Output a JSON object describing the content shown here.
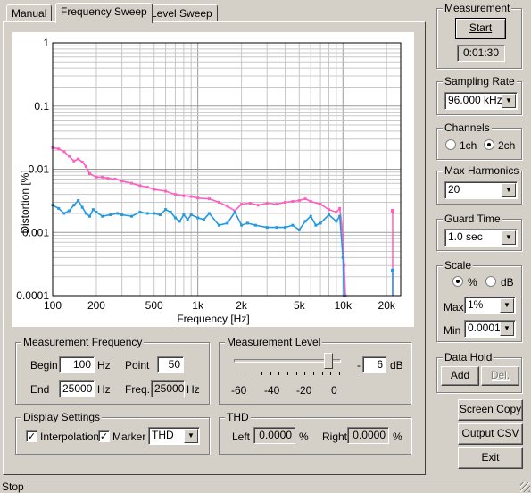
{
  "tabs": [
    {
      "label": "Manual",
      "active": false
    },
    {
      "label": "Frequency Sweep",
      "active": true
    },
    {
      "label": "Level Sweep",
      "active": false
    }
  ],
  "chart_data": {
    "type": "line",
    "xlabel": "Frequency [Hz]",
    "ylabel": "Distortion [%]",
    "xscale": "log",
    "yscale": "log",
    "xlim": [
      100,
      25000
    ],
    "ylim": [
      0.0001,
      1
    ],
    "x_ticks": [
      "100",
      "200",
      "500",
      "1k",
      "2k",
      "5k",
      "10k",
      "20k"
    ],
    "y_ticks": [
      "1",
      "0.1",
      "0.01",
      "0.001",
      "0.0001"
    ],
    "grid": true,
    "series": [
      {
        "color": "#ff5fbf",
        "points": [
          [
            100,
            0.022
          ],
          [
            110,
            0.021
          ],
          [
            120,
            0.019
          ],
          [
            130,
            0.016
          ],
          [
            140,
            0.0135
          ],
          [
            150,
            0.0145
          ],
          [
            160,
            0.013
          ],
          [
            170,
            0.011
          ],
          [
            180,
            0.0085
          ],
          [
            200,
            0.0075
          ],
          [
            220,
            0.0075
          ],
          [
            240,
            0.0072
          ],
          [
            270,
            0.007
          ],
          [
            300,
            0.0065
          ],
          [
            350,
            0.006
          ],
          [
            400,
            0.0055
          ],
          [
            450,
            0.0052
          ],
          [
            500,
            0.0048
          ],
          [
            600,
            0.0045
          ],
          [
            700,
            0.004
          ],
          [
            800,
            0.0038
          ],
          [
            900,
            0.0037
          ],
          [
            1000,
            0.0035
          ],
          [
            1200,
            0.0034
          ],
          [
            1400,
            0.003
          ],
          [
            1600,
            0.0026
          ],
          [
            1800,
            0.0022
          ],
          [
            2000,
            0.0028
          ],
          [
            2300,
            0.0029
          ],
          [
            2600,
            0.0027
          ],
          [
            3000,
            0.0029
          ],
          [
            3500,
            0.0028
          ],
          [
            4000,
            0.003
          ],
          [
            4500,
            0.0031
          ],
          [
            5000,
            0.0032
          ],
          [
            5500,
            0.0034
          ],
          [
            6000,
            0.0031
          ],
          [
            7000,
            0.0028
          ],
          [
            8000,
            0.0023
          ],
          [
            9000,
            0.0021
          ],
          [
            9500,
            0.0024
          ],
          [
            10000,
            0.0009
          ],
          [
            10200,
            0.0003
          ],
          [
            10400,
            0.0001
          ]
        ]
      },
      {
        "color": "#2299e0",
        "points": [
          [
            100,
            0.0027
          ],
          [
            110,
            0.0024
          ],
          [
            120,
            0.002
          ],
          [
            130,
            0.0022
          ],
          [
            140,
            0.0027
          ],
          [
            150,
            0.0032
          ],
          [
            160,
            0.0025
          ],
          [
            170,
            0.002
          ],
          [
            180,
            0.0018
          ],
          [
            190,
            0.0023
          ],
          [
            200,
            0.0021
          ],
          [
            220,
            0.0018
          ],
          [
            250,
            0.0019
          ],
          [
            280,
            0.002
          ],
          [
            300,
            0.0019
          ],
          [
            350,
            0.0018
          ],
          [
            400,
            0.0021
          ],
          [
            450,
            0.002
          ],
          [
            500,
            0.002
          ],
          [
            550,
            0.0019
          ],
          [
            600,
            0.0023
          ],
          [
            650,
            0.0021
          ],
          [
            700,
            0.0017
          ],
          [
            750,
            0.0015
          ],
          [
            800,
            0.0019
          ],
          [
            850,
            0.0016
          ],
          [
            900,
            0.0019
          ],
          [
            1000,
            0.0017
          ],
          [
            1100,
            0.0016
          ],
          [
            1200,
            0.002
          ],
          [
            1400,
            0.0013
          ],
          [
            1600,
            0.0014
          ],
          [
            1800,
            0.0021
          ],
          [
            2000,
            0.0013
          ],
          [
            2200,
            0.0014
          ],
          [
            2500,
            0.0013
          ],
          [
            3000,
            0.0012
          ],
          [
            3500,
            0.0012
          ],
          [
            4000,
            0.0012
          ],
          [
            4500,
            0.0013
          ],
          [
            5000,
            0.0011
          ],
          [
            5500,
            0.0015
          ],
          [
            6000,
            0.0018
          ],
          [
            6500,
            0.0013
          ],
          [
            7000,
            0.0014
          ],
          [
            8000,
            0.0019
          ],
          [
            9000,
            0.0015
          ],
          [
            9500,
            0.0018
          ],
          [
            10000,
            0.0004
          ],
          [
            10200,
            0.0001
          ]
        ]
      }
    ],
    "tail_markers": [
      {
        "x": 22000,
        "y": 0.0022,
        "color": "#ff5fbf"
      },
      {
        "x": 22000,
        "y": 0.00025,
        "color": "#2299e0"
      }
    ]
  },
  "measurement_frequency": {
    "title": "Measurement Frequency",
    "begin_label": "Begin",
    "begin_value": "100",
    "begin_unit": "Hz",
    "end_label": "End",
    "end_value": "25000",
    "end_unit": "Hz",
    "point_label": "Point",
    "point_value": "50",
    "freq_label": "Freq.",
    "freq_value": "25000",
    "freq_unit": "Hz"
  },
  "measurement_level": {
    "title": "Measurement Level",
    "slider_value_db": -6,
    "slider_min_db": -60,
    "slider_max_db": 0,
    "ticks": [
      "-60",
      "-40",
      "-20",
      "0"
    ],
    "sign": "-",
    "value": "6",
    "unit": "dB"
  },
  "display_settings": {
    "title": "Display Settings",
    "interpolation_label": "Interpolation",
    "interpolation_checked": "✓",
    "marker_label": "Marker",
    "marker_checked": "✓",
    "mode_value": "THD"
  },
  "thd": {
    "title": "THD",
    "left_label": "Left",
    "left_value": "0.0000",
    "left_unit": "%",
    "right_label": "Right",
    "right_value": "0.0000",
    "right_unit": "%"
  },
  "measurement": {
    "title": "Measurement",
    "start_label": "Start",
    "elapsed": "0:01:30"
  },
  "sampling_rate": {
    "title": "Sampling Rate",
    "value": "96.000 kHz"
  },
  "channels": {
    "title": "Channels",
    "opt1": "1ch",
    "opt2": "2ch",
    "selected": "2ch"
  },
  "max_harmonics": {
    "title": "Max Harmonics",
    "value": "20"
  },
  "guard_time": {
    "title": "Guard Time",
    "value": "1.0 sec"
  },
  "scale": {
    "title": "Scale",
    "opt1": "%",
    "opt2": "dB",
    "selected": "%",
    "max_label": "Max",
    "max_value": "1%",
    "min_label": "Min",
    "min_value": "0.0001%"
  },
  "data_hold": {
    "title": "Data Hold",
    "add_label": "Add",
    "del_label": "Del."
  },
  "buttons": {
    "screen_copy": "Screen Copy",
    "output_csv": "Output CSV",
    "exit": "Exit"
  },
  "status": {
    "text": "Stop"
  }
}
